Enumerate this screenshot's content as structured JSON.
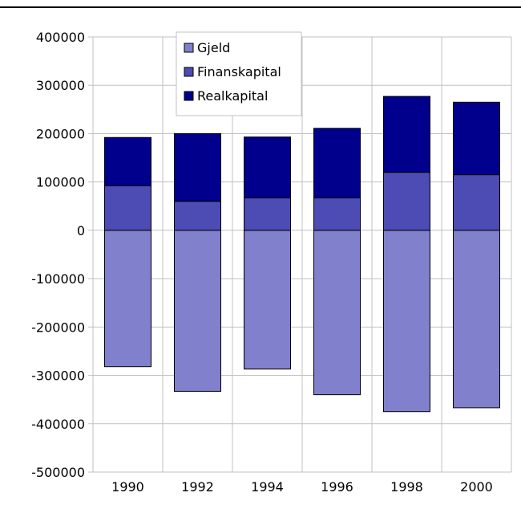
{
  "chart_data": {
    "type": "bar",
    "stacked": true,
    "categories": [
      "1990",
      "1992",
      "1994",
      "1996",
      "1998",
      "2000"
    ],
    "series": [
      {
        "name": "Gjeld",
        "color": "#8080cc",
        "values": [
          -282000,
          -333000,
          -287000,
          -340000,
          -375000,
          -367000
        ]
      },
      {
        "name": "Finanskapital",
        "color": "#4c4cb4",
        "values": [
          92000,
          60000,
          67000,
          67000,
          120000,
          115000
        ]
      },
      {
        "name": "Realkapital",
        "color": "#00008c",
        "values": [
          100000,
          140000,
          126000,
          144000,
          157000,
          150000
        ]
      }
    ],
    "ylim": [
      -500000,
      400000
    ],
    "yticks": [
      "400000",
      "300000",
      "200000",
      "100000",
      "0",
      "-100000",
      "-200000",
      "-300000",
      "-400000",
      "-500000"
    ],
    "ytick_values": [
      400000,
      300000,
      200000,
      100000,
      0,
      -100000,
      -200000,
      -300000,
      -400000,
      -500000
    ],
    "grid": true,
    "legend_position": "top-center",
    "title": "",
    "xlabel": "",
    "ylabel": ""
  }
}
